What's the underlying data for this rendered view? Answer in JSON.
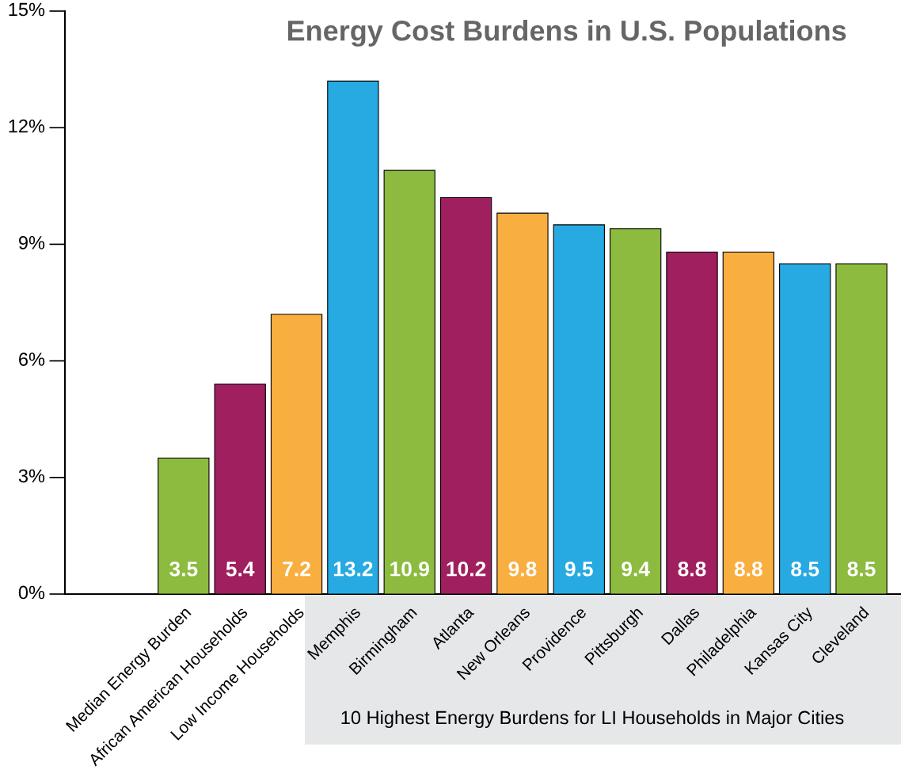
{
  "chart_data": {
    "type": "bar",
    "title": "Energy Cost Burdens in U.S. Populations",
    "categories": [
      "Median Energy Burden",
      "African American Households",
      "Low Income Households",
      "Memphis",
      "Birmingham",
      "Atlanta",
      "New Orleans",
      "Providence",
      "Pittsburgh",
      "Dallas",
      "Philadelphia",
      "Kansas City",
      "Cleveland"
    ],
    "values": [
      3.5,
      5.4,
      7.2,
      13.2,
      10.9,
      10.2,
      9.8,
      9.5,
      9.4,
      8.8,
      8.8,
      8.5,
      8.5
    ],
    "colors": [
      "#8cbb3f",
      "#a01f5e",
      "#f9ae40",
      "#27aae1",
      "#8cbb3f",
      "#a01f5e",
      "#f9ae40",
      "#27aae1",
      "#8cbb3f",
      "#a01f5e",
      "#f9ae40",
      "#27aae1",
      "#8cbb3f"
    ],
    "data_labels": true,
    "ylim": [
      0,
      15
    ],
    "yticks": [
      {
        "value": 0,
        "label": "0%"
      },
      {
        "value": 3,
        "label": "3%"
      },
      {
        "value": 6,
        "label": "6%"
      },
      {
        "value": 9,
        "label": "9%"
      },
      {
        "value": 12,
        "label": "12%"
      },
      {
        "value": 15,
        "label": "15%"
      }
    ],
    "grid": false,
    "annotations": [
      "10 Highest Energy Burdens for LI Households in Major Cities"
    ]
  }
}
